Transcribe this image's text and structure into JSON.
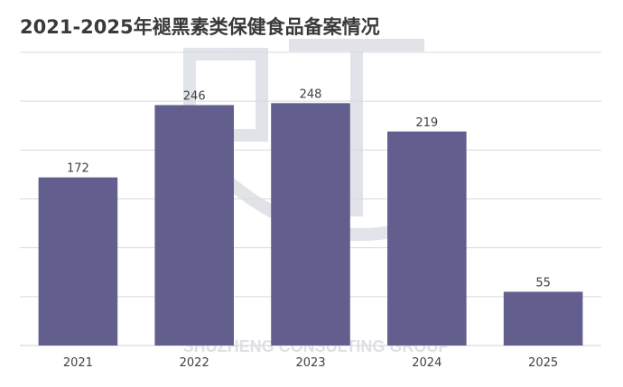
{
  "chart_data": {
    "type": "bar",
    "title": "2021-2025年褪黑素类保健食品备案情况",
    "categories": [
      "2021",
      "2022",
      "2023",
      "2024",
      "2025"
    ],
    "values": [
      172,
      246,
      248,
      219,
      55
    ],
    "xlabel": "",
    "ylabel": "",
    "ylim": [
      0,
      300
    ],
    "grid": true,
    "legend": "none",
    "bar_color": "#625e8e",
    "grid_color": "#d9d9d9",
    "label_color": "#404040"
  },
  "watermark": {
    "text": "SHUZHENG CONSULTING GROUP"
  }
}
